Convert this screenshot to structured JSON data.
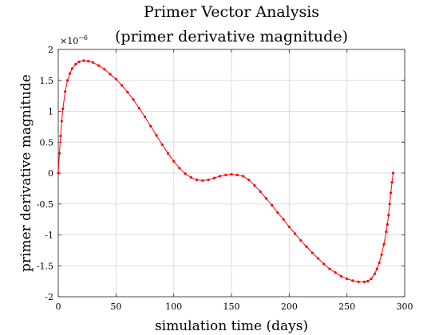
{
  "chart_data": {
    "type": "line",
    "title": "Primer Vector Analysis",
    "subtitle": "(primer derivative magnitude)",
    "xlabel": "simulation time (days)",
    "ylabel": "primer derivative magnitude",
    "y_exponent_base": "×10",
    "y_exponent_power": "−6",
    "xlim": [
      0,
      300
    ],
    "ylim": [
      -2,
      2
    ],
    "x_ticks": [
      0,
      50,
      100,
      150,
      200,
      250,
      300
    ],
    "x_tick_labels": [
      "0",
      "50",
      "100",
      "150",
      "200",
      "250",
      "300"
    ],
    "y_ticks": [
      -2,
      -1.5,
      -1,
      -0.5,
      0,
      0.5,
      1,
      1.5,
      2
    ],
    "y_tick_labels": [
      "-2",
      "-1.5",
      "-1",
      "-0.5",
      "0",
      "0.5",
      "1",
      "1.5",
      "2"
    ],
    "grid": true,
    "line_color": "#ff0000",
    "marker": "dot",
    "series": [
      {
        "x": [
          0,
          1,
          2,
          3,
          4,
          6,
          8,
          10,
          12,
          15,
          18,
          22,
          26,
          30,
          35,
          40,
          45,
          50,
          55,
          60,
          65,
          70,
          75,
          80,
          85,
          90,
          95,
          100,
          105,
          110,
          115,
          120,
          125,
          130,
          135,
          140,
          145,
          150,
          155,
          160,
          165,
          170,
          175,
          180,
          185,
          190,
          195,
          200,
          205,
          210,
          215,
          220,
          225,
          230,
          235,
          240,
          245,
          250,
          255,
          260,
          265,
          268,
          271,
          274,
          276,
          278,
          280,
          282,
          284,
          285,
          286,
          287,
          288,
          289,
          290
        ],
        "y": [
          0,
          0.32,
          0.6,
          0.84,
          1.04,
          1.32,
          1.5,
          1.61,
          1.69,
          1.76,
          1.8,
          1.82,
          1.81,
          1.79,
          1.74,
          1.68,
          1.6,
          1.52,
          1.42,
          1.31,
          1.19,
          1.05,
          0.91,
          0.76,
          0.61,
          0.46,
          0.32,
          0.19,
          0.08,
          -0.01,
          -0.07,
          -0.11,
          -0.12,
          -0.11,
          -0.08,
          -0.05,
          -0.03,
          -0.02,
          -0.03,
          -0.05,
          -0.11,
          -0.2,
          -0.3,
          -0.41,
          -0.52,
          -0.64,
          -0.75,
          -0.87,
          -0.98,
          -1.09,
          -1.19,
          -1.29,
          -1.38,
          -1.47,
          -1.55,
          -1.61,
          -1.67,
          -1.71,
          -1.74,
          -1.76,
          -1.76,
          -1.75,
          -1.71,
          -1.63,
          -1.55,
          -1.45,
          -1.32,
          -1.15,
          -0.95,
          -0.83,
          -0.68,
          -0.5,
          -0.32,
          -0.15,
          0
        ]
      }
    ]
  }
}
